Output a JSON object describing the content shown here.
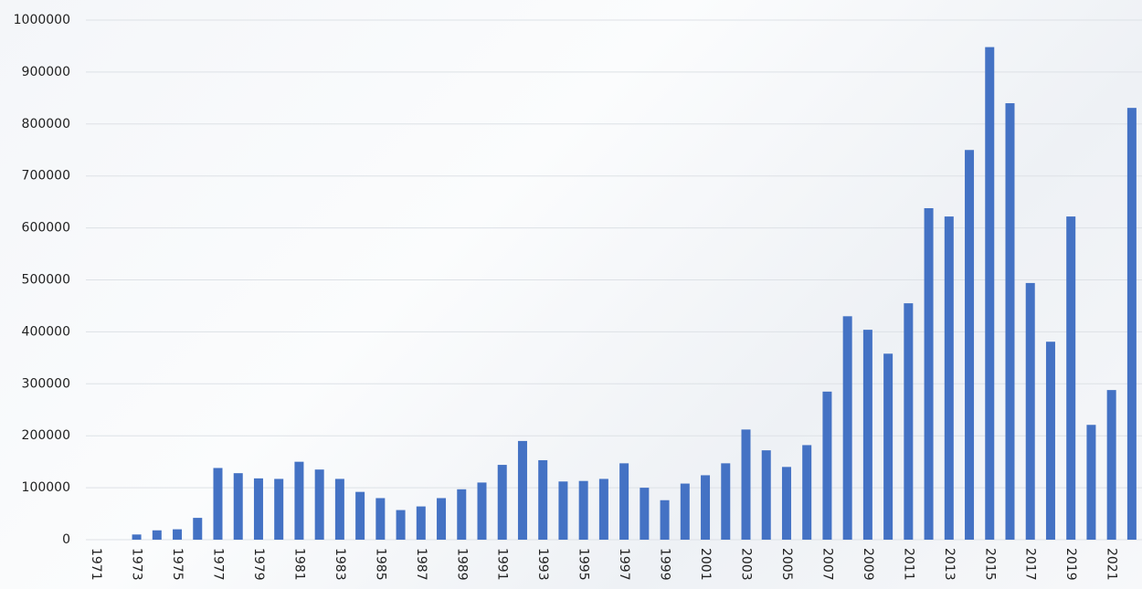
{
  "chart_data": {
    "type": "bar",
    "categories": [
      "1971",
      null,
      "1973",
      null,
      "1975",
      null,
      "1977",
      null,
      "1979",
      null,
      "1981",
      null,
      "1983",
      null,
      "1985",
      null,
      "1987",
      null,
      "1989",
      null,
      "1991",
      null,
      "1993",
      null,
      "1995",
      null,
      "1997",
      null,
      "1999",
      null,
      "2001",
      null,
      "2003",
      null,
      "2005",
      null,
      "2007",
      null,
      "2009",
      null,
      "2011",
      null,
      "2013",
      null,
      "2015",
      null,
      "2017",
      null,
      "2019",
      null,
      "2021",
      null
    ],
    "values": [
      0,
      0,
      10000,
      18000,
      20000,
      42000,
      138000,
      128000,
      118000,
      117000,
      150000,
      135000,
      117000,
      92000,
      80000,
      57000,
      64000,
      80000,
      97000,
      110000,
      144000,
      190000,
      153000,
      112000,
      113000,
      117000,
      147000,
      100000,
      76000,
      108000,
      124000,
      147000,
      212000,
      172000,
      140000,
      182000,
      285000,
      430000,
      404000,
      358000,
      455000,
      638000,
      622000,
      750000,
      948000,
      840000,
      494000,
      381000,
      622000,
      221000,
      288000,
      831000
    ],
    "color": "#4472c4",
    "ylim": [
      0,
      1000000
    ],
    "yticks": [
      0,
      100000,
      200000,
      300000,
      400000,
      500000,
      600000,
      700000,
      800000,
      900000,
      1000000
    ],
    "grid": true
  }
}
